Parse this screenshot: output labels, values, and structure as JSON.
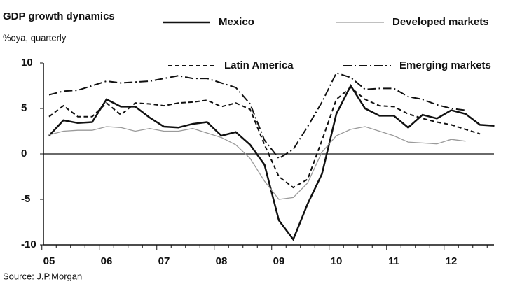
{
  "chart_data": {
    "type": "line",
    "title": "GDP growth dynamics",
    "subtitle": "%oya, quarterly",
    "source": "Source: J.P.Morgan",
    "categories": [
      "05",
      null,
      null,
      null,
      "06",
      null,
      null,
      null,
      "07",
      null,
      null,
      null,
      "08",
      null,
      null,
      null,
      "09",
      null,
      null,
      null,
      "10",
      null,
      null,
      null,
      "11",
      null,
      null,
      null,
      "12",
      null,
      null,
      null
    ],
    "ylim": [
      -10,
      10
    ],
    "yticks": [
      -10,
      -5,
      0,
      5,
      10
    ],
    "series": [
      {
        "name": "Mexico",
        "color": "#111111",
        "dash": "none",
        "width": 2.5,
        "values": [
          2,
          3.7,
          3.4,
          3.5,
          6.0,
          5.2,
          5.2,
          4.0,
          3.0,
          2.9,
          3.3,
          3.5,
          2.0,
          2.4,
          1.0,
          -1.2,
          -7.3,
          -9.4,
          -5.5,
          -2.2,
          4.4,
          7.5,
          5.0,
          4.2,
          4.2,
          2.9,
          4.3,
          3.9,
          4.8,
          4.4,
          3.2,
          3.1
        ]
      },
      {
        "name": "Developed markets",
        "color": "#9a9a9a",
        "dash": "none",
        "width": 1.3,
        "values": [
          2.1,
          2.5,
          2.6,
          2.6,
          3.0,
          2.9,
          2.5,
          2.8,
          2.5,
          2.5,
          2.8,
          2.3,
          1.8,
          1.0,
          -0.5,
          -3.0,
          -5.0,
          -4.8,
          -3.2,
          0.2,
          2.0,
          2.7,
          3.0,
          2.5,
          2.0,
          1.3,
          1.2,
          1.1,
          1.6,
          1.4,
          null,
          null
        ]
      },
      {
        "name": "Latin America",
        "color": "#111111",
        "dash": "6 4",
        "width": 2,
        "values": [
          4.1,
          5.3,
          4.1,
          4.1,
          5.6,
          4.3,
          5.6,
          5.5,
          5.3,
          5.6,
          5.7,
          5.9,
          5.2,
          5.6,
          4.9,
          1.0,
          -2.5,
          -3.7,
          -2.8,
          1.5,
          6.0,
          7.3,
          6.0,
          5.3,
          5.2,
          4.4,
          3.9,
          3.5,
          3.2,
          2.7,
          2.2,
          null
        ]
      },
      {
        "name": "Emerging markets",
        "color": "#111111",
        "dash": "12 4 2 4",
        "width": 2,
        "values": [
          6.5,
          6.9,
          7.0,
          7.5,
          8.0,
          7.8,
          7.9,
          8.0,
          8.3,
          8.6,
          8.3,
          8.3,
          7.8,
          7.3,
          5.5,
          1.5,
          -0.5,
          0.5,
          3.0,
          5.7,
          8.9,
          8.4,
          7.1,
          7.2,
          7.2,
          6.3,
          6.0,
          5.4,
          5.0,
          4.8,
          null,
          null
        ]
      }
    ]
  }
}
